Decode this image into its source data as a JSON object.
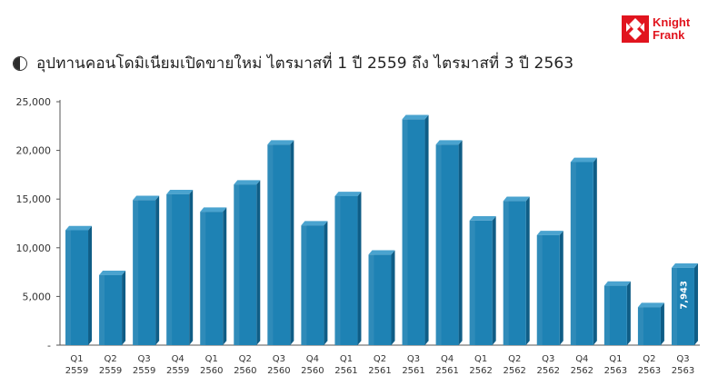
{
  "header": {
    "title": "อุปทานคอนโดมิเนียมเปิดขายใหม่ ไตรมาสที่ 1 ปี 2559 ถึง ไตรมาสที่ 3 ปี 2563",
    "logo_line1": "Knight",
    "logo_line2": "Frank",
    "logo_color": "#e1141e"
  },
  "chart_data": {
    "type": "bar",
    "title": "อุปทานคอนโดมิเนียมเปิดขายใหม่ ไตรมาสที่ 1 ปี 2559 ถึง ไตรมาสที่ 3 ปี 2563",
    "xlabel": "",
    "ylabel": "",
    "ylim": [
      0,
      25000
    ],
    "yticks": [
      0,
      5000,
      10000,
      15000,
      20000,
      25000
    ],
    "ytick_labels": [
      "-",
      "5,000",
      "10,000",
      "15,000",
      "20,000",
      "25,000"
    ],
    "categories": [
      [
        "Q1",
        "2559"
      ],
      [
        "Q2",
        "2559"
      ],
      [
        "Q3",
        "2559"
      ],
      [
        "Q4",
        "2559"
      ],
      [
        "Q1",
        "2560"
      ],
      [
        "Q2",
        "2560"
      ],
      [
        "Q3",
        "2560"
      ],
      [
        "Q4",
        "2560"
      ],
      [
        "Q1",
        "2561"
      ],
      [
        "Q2",
        "2561"
      ],
      [
        "Q3",
        "2561"
      ],
      [
        "Q4",
        "2561"
      ],
      [
        "Q1",
        "2562"
      ],
      [
        "Q2",
        "2562"
      ],
      [
        "Q3",
        "2562"
      ],
      [
        "Q4",
        "2562"
      ],
      [
        "Q1",
        "2563"
      ],
      [
        "Q2",
        "2563"
      ],
      [
        "Q3",
        "2563"
      ]
    ],
    "values": [
      11800,
      7200,
      14900,
      15500,
      13700,
      16500,
      20600,
      12300,
      15300,
      9300,
      23200,
      20600,
      12800,
      14800,
      11300,
      18800,
      6100,
      3900,
      7943
    ],
    "data_labels": [
      null,
      null,
      null,
      null,
      null,
      null,
      null,
      null,
      null,
      null,
      null,
      null,
      null,
      null,
      null,
      null,
      null,
      null,
      "7,943"
    ],
    "bar_color": "#1e82b4",
    "bar_side_color": "#0f5d86",
    "bar_top_color": "#4aa3cf",
    "grid": false,
    "legend": "none"
  }
}
